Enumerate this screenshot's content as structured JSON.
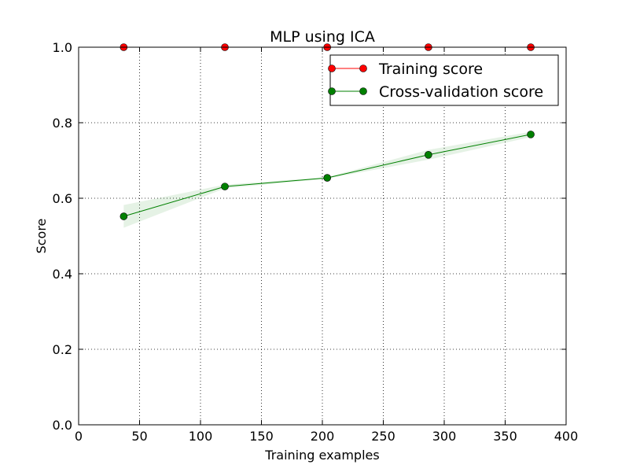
{
  "chart_data": {
    "type": "line",
    "title": "MLP using ICA",
    "xlabel": "Training examples",
    "ylabel": "Score",
    "xlim": [
      0,
      400
    ],
    "ylim": [
      0.0,
      1.0
    ],
    "x_ticks": [
      0,
      50,
      100,
      150,
      200,
      250,
      300,
      350,
      400
    ],
    "y_ticks": [
      0.0,
      0.2,
      0.4,
      0.6,
      0.8,
      1.0
    ],
    "x_tick_labels": [
      "0",
      "50",
      "100",
      "150",
      "200",
      "250",
      "300",
      "350",
      "400"
    ],
    "y_tick_labels": [
      "0.0",
      "0.2",
      "0.4",
      "0.6",
      "0.8",
      "1.0"
    ],
    "grid": true,
    "legend_position": "top-right",
    "x": [
      37,
      120,
      204,
      287,
      371
    ],
    "series": [
      {
        "name": "Training score",
        "color": "#ff0000",
        "values": [
          1.0,
          1.0,
          1.0,
          1.0,
          1.0
        ],
        "band_lower": [
          1.0,
          1.0,
          1.0,
          1.0,
          1.0
        ],
        "band_upper": [
          1.0,
          1.0,
          1.0,
          1.0,
          1.0
        ]
      },
      {
        "name": "Cross-validation score",
        "color": "#008000",
        "values": [
          0.552,
          0.631,
          0.654,
          0.715,
          0.769
        ],
        "band_lower": [
          0.522,
          0.626,
          0.652,
          0.702,
          0.762
        ],
        "band_upper": [
          0.582,
          0.636,
          0.656,
          0.728,
          0.776
        ]
      }
    ]
  }
}
